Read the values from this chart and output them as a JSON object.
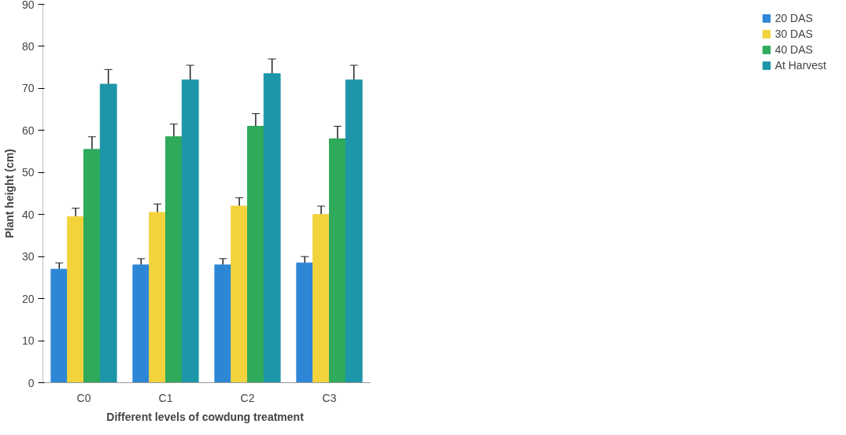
{
  "chart_data": {
    "type": "bar",
    "xlabel": "Different levels of cowdung  treatment",
    "ylabel": "Plant height (cm)",
    "categories": [
      "C0",
      "C1",
      "C2",
      "C3"
    ],
    "series": [
      {
        "name": "20 DAS",
        "color": "#2e86d6",
        "values": [
          27,
          28,
          28,
          28.5
        ],
        "errors": [
          1.5,
          1.5,
          1.5,
          1.5
        ]
      },
      {
        "name": "30 DAS",
        "color": "#f2d33c",
        "values": [
          39.5,
          40.5,
          42,
          40
        ],
        "errors": [
          2,
          2,
          2,
          2
        ]
      },
      {
        "name": "40 DAS",
        "color": "#2eaa5a",
        "values": [
          55.5,
          58.5,
          61,
          58
        ],
        "errors": [
          3,
          3,
          3,
          3
        ]
      },
      {
        "name": "At Harvest",
        "color": "#1c96a8",
        "values": [
          71,
          72,
          73.5,
          72
        ],
        "errors": [
          3.5,
          3.5,
          3.5,
          3.5
        ]
      }
    ],
    "ylim": [
      0,
      90
    ],
    "yticks": [
      0,
      10,
      20,
      30,
      40,
      50,
      60,
      70,
      80,
      90
    ],
    "grid": false,
    "legend": "right"
  }
}
